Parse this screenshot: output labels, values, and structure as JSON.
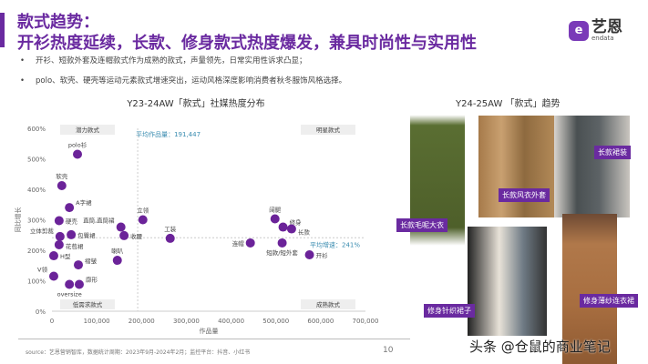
{
  "header": {
    "title_line1": "款式趋势：",
    "title_line2": "开衫热度延续，长款、修身款式热度爆发，兼具时尚性与实用性"
  },
  "logo": {
    "cn": "艺恩",
    "en": "endata",
    "mark": "e"
  },
  "bullets": [
    "开衫、短款外套及连帽款式作为成熟的款式，声量领先，日常实用性诉求凸显；",
    "polo、软壳、硬壳等运动元素款式增速突出，运动风格深度影响消费者秋冬服饰风格选择。"
  ],
  "chart_data": {
    "type": "scatter",
    "title": "Y23-24AW「款式」社媒热度分布",
    "xlabel": "作品量",
    "ylabel": "同比增长",
    "xlim": [
      0,
      700000
    ],
    "ylim": [
      0,
      600
    ],
    "xticks": [
      "0",
      "100,000",
      "200,000",
      "300,000",
      "400,000",
      "500,000",
      "600,000",
      "700,000"
    ],
    "yticks": [
      "0%",
      "100%",
      "200%",
      "300%",
      "400%",
      "500%",
      "600%"
    ],
    "avg_x": 191447,
    "avg_x_label": "平均作品量：191,447",
    "avg_y": 241,
    "avg_y_label": "平均增速：241%",
    "quadrants": [
      "潜力款式",
      "明星款式",
      "低需求款式",
      "成熟款式"
    ],
    "color": "#6b2399",
    "points": [
      {
        "label": "polo衫",
        "x": 57000,
        "y": 515
      },
      {
        "label": "软壳",
        "x": 22000,
        "y": 412
      },
      {
        "label": "A字裙",
        "x": 39000,
        "y": 340
      },
      {
        "label": "硬壳",
        "x": 16000,
        "y": 297
      },
      {
        "label": "直筒,直筒裙",
        "x": 154000,
        "y": 276
      },
      {
        "label": "立领",
        "x": 203000,
        "y": 300
      },
      {
        "label": "工装",
        "x": 264000,
        "y": 239
      },
      {
        "label": "收腰",
        "x": 161000,
        "y": 248
      },
      {
        "label": "立体剪裁",
        "x": 18000,
        "y": 245
      },
      {
        "label": "包臀裙",
        "x": 43000,
        "y": 251
      },
      {
        "label": "花苞裙",
        "x": 16000,
        "y": 218
      },
      {
        "label": "H型",
        "x": 4000,
        "y": 182
      },
      {
        "label": "喇叭",
        "x": 146000,
        "y": 167
      },
      {
        "label": "褶皱",
        "x": 59000,
        "y": 152
      },
      {
        "label": "V领",
        "x": 4000,
        "y": 115
      },
      {
        "label": "oversize",
        "x": 39000,
        "y": 88
      },
      {
        "label": "廓形",
        "x": 61000,
        "y": 88
      },
      {
        "label": "阔腿",
        "x": 498000,
        "y": 303
      },
      {
        "label": "修身",
        "x": 516000,
        "y": 276
      },
      {
        "label": "长款",
        "x": 535000,
        "y": 270
      },
      {
        "label": "连帽",
        "x": 443000,
        "y": 224
      },
      {
        "label": "短款/短外套",
        "x": 514000,
        "y": 224
      },
      {
        "label": "开衫",
        "x": 575000,
        "y": 185
      }
    ]
  },
  "right": {
    "title": "Y24-25AW 「款式」趋势",
    "tags": [
      "长款毛呢大衣",
      "长款风衣外套",
      "长款裙装",
      "修身针织裙子",
      "修身薄纱连衣裙"
    ]
  },
  "footer": {
    "source": "source：艺恩营销智库，数据统计周期：2023年9月-2024年2月；监控平台：抖音、小红书",
    "page": "10",
    "watermark": "头条 @仓鼠的商业笔记"
  }
}
